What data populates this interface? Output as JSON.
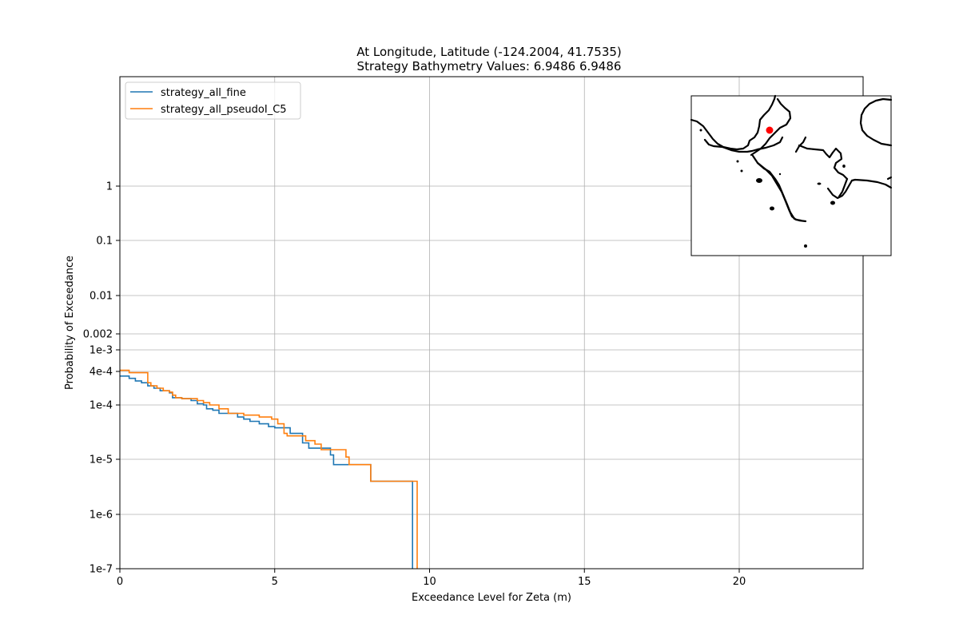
{
  "figure": {
    "title_line1": "At Longitude, Latitude (-124.2004,  41.7535)",
    "title_line2": "Strategy Bathymetry Values:    6.9486    6.9486"
  },
  "chart_data": {
    "type": "line",
    "title": "At Longitude, Latitude (-124.2004,  41.7535)\nStrategy Bathymetry Values:    6.9486    6.9486",
    "xlabel": "Exceedance Level for Zeta (m)",
    "ylabel": "Probability of Exceedance",
    "xlim": [
      0,
      24
    ],
    "xticks": [
      0,
      5,
      10,
      15,
      20
    ],
    "yscale": "custom-log (piecewise, matching tick labels)",
    "yticks": [
      {
        "value": 1e-07,
        "label": "1e-7"
      },
      {
        "value": 1e-06,
        "label": "1e-6"
      },
      {
        "value": 1e-05,
        "label": "1e-5"
      },
      {
        "value": 0.0001,
        "label": "1e-4"
      },
      {
        "value": 0.0004,
        "label": "4e-4"
      },
      {
        "value": 0.001,
        "label": "1e-3"
      },
      {
        "value": 0.002,
        "label": "0.002"
      },
      {
        "value": 0.01,
        "label": "0.01"
      },
      {
        "value": 0.1,
        "label": "0.1"
      },
      {
        "value": 1,
        "label": "1"
      }
    ],
    "grid": true,
    "legend_position": "top-left",
    "series": [
      {
        "name": "strategy_all_fine",
        "color": "#1f77b4",
        "step": "post",
        "x": [
          0,
          0.3,
          0.5,
          0.7,
          0.9,
          1.1,
          1.3,
          1.6,
          1.7,
          2.0,
          2.3,
          2.5,
          2.7,
          2.8,
          3.0,
          3.2,
          3.6,
          3.8,
          4.0,
          4.2,
          4.5,
          4.8,
          5.0,
          5.5,
          5.9,
          6.1,
          6.4,
          6.8,
          6.9,
          7.2,
          8.1,
          9.45,
          9.45
        ],
        "y": [
          0.00033,
          0.0003,
          0.00027,
          0.00025,
          0.00022,
          0.0002,
          0.00018,
          0.000165,
          0.000135,
          0.00013,
          0.00012,
          0.000105,
          0.0001,
          8.5e-05,
          8e-05,
          7e-05,
          7e-05,
          6e-05,
          5.5e-05,
          5e-05,
          4.5e-05,
          4e-05,
          3.8e-05,
          3e-05,
          2e-05,
          1.6e-05,
          1.6e-05,
          1.2e-05,
          8e-06,
          8e-06,
          4e-06,
          4e-06,
          1e-07
        ]
      },
      {
        "name": "strategy_all_pseudoI_C5",
        "color": "#ff7f0e",
        "step": "post",
        "x": [
          0,
          0.3,
          0.9,
          1.0,
          1.2,
          1.4,
          1.6,
          1.7,
          1.8,
          2.0,
          2.5,
          2.7,
          2.9,
          3.2,
          3.5,
          4.0,
          4.5,
          4.9,
          5.1,
          5.3,
          5.4,
          6.0,
          6.3,
          6.5,
          7.3,
          7.4,
          8.1,
          9.6,
          9.6
        ],
        "y": [
          0.00042,
          0.00038,
          0.00025,
          0.00022,
          0.0002,
          0.00018,
          0.00017,
          0.00015,
          0.000135,
          0.00013,
          0.00012,
          0.00011,
          0.0001,
          8.5e-05,
          7e-05,
          6.5e-05,
          6e-05,
          5.5e-05,
          4.5e-05,
          3e-05,
          2.7e-05,
          2.2e-05,
          1.9e-05,
          1.5e-05,
          1.1e-05,
          8e-06,
          4e-06,
          4e-06,
          1e-07
        ]
      }
    ]
  },
  "inset_map": {
    "marker_color": "#ff0000",
    "coastline_color": "#000000"
  }
}
